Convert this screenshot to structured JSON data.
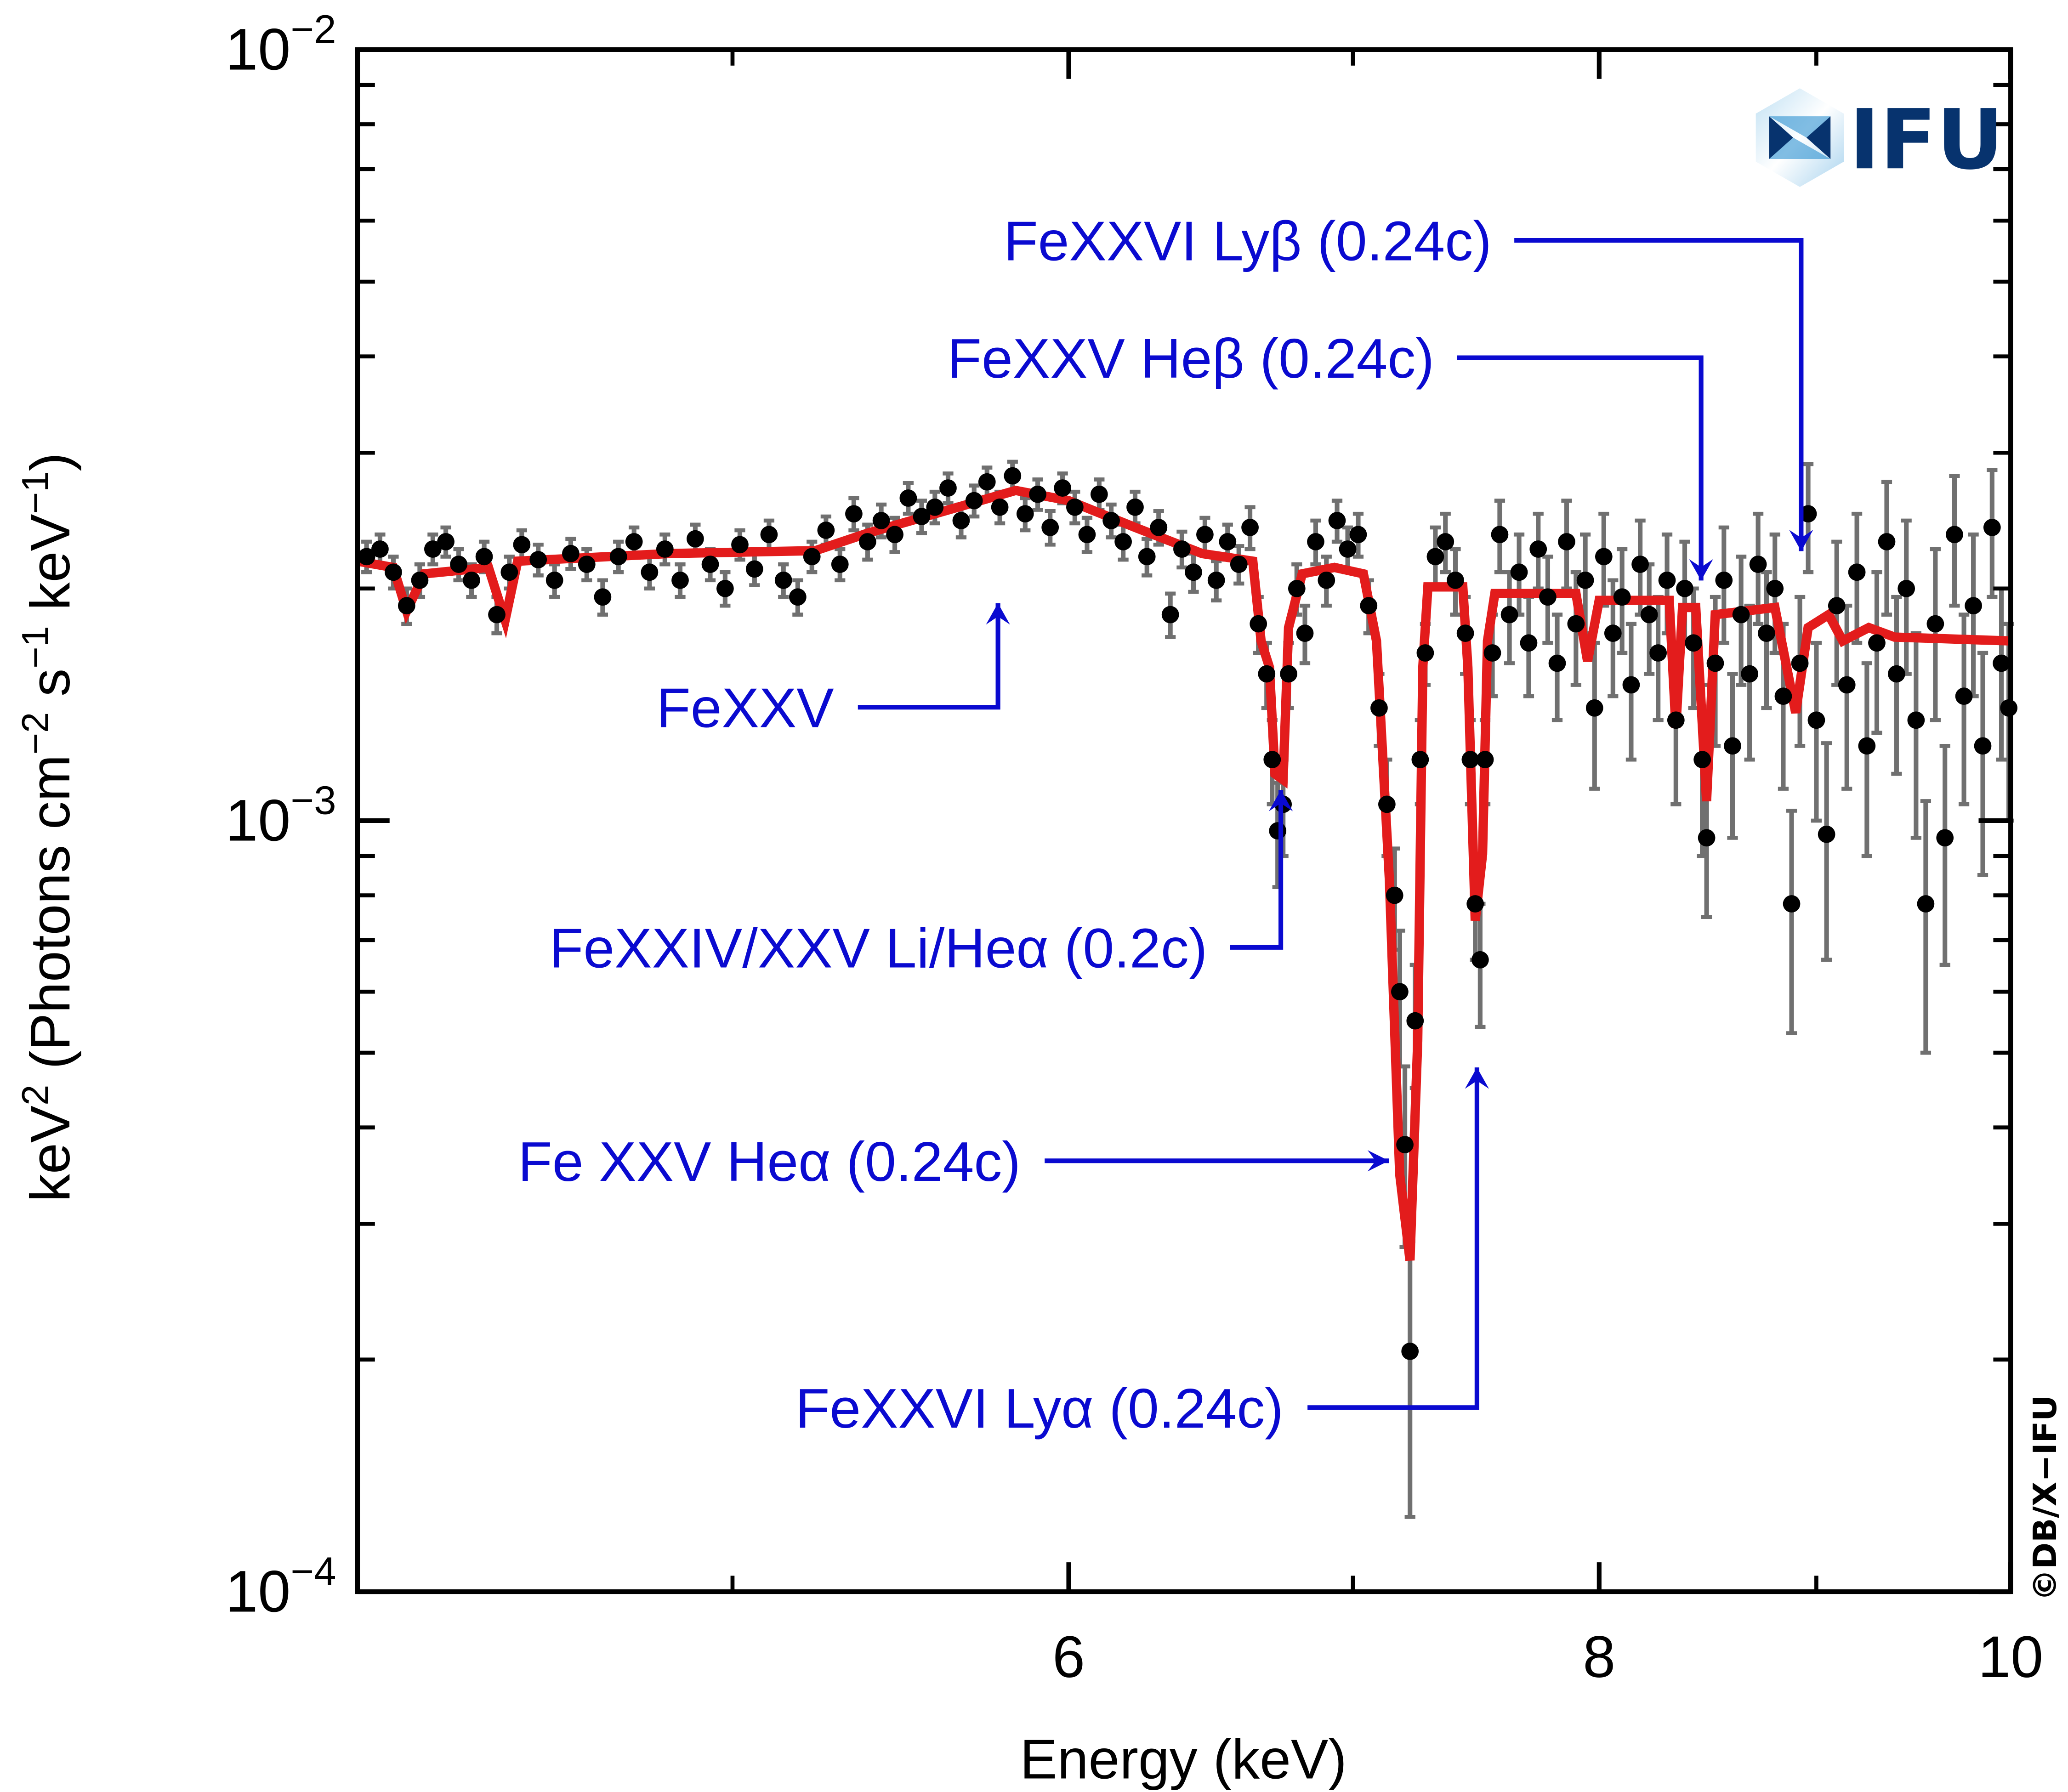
{
  "chart_data": {
    "type": "scatter",
    "xlabel": "Energy (keV)",
    "ylabel": {
      "pre": "keV",
      "sup1": "2",
      "mid1": " (Photons cm",
      "sup2": "−2",
      "mid2": " s",
      "sup3": "−1",
      "mid3": " keV",
      "sup4": "−1",
      "post": ")"
    },
    "x_scale": "log",
    "y_scale": "log",
    "xlim": [
      4.08,
      10
    ],
    "ylim": [
      0.0001,
      0.01
    ],
    "x_ticks": [
      {
        "value": 6,
        "label": "6"
      },
      {
        "value": 8,
        "label": "8"
      },
      {
        "value": 10,
        "label": "10"
      }
    ],
    "x_minor_ticks": [
      5,
      7,
      9
    ],
    "y_ticks": [
      {
        "value": 0.01,
        "base": "10",
        "exp": "−2"
      },
      {
        "value": 0.001,
        "base": "10",
        "exp": "−3"
      },
      {
        "value": 0.0001,
        "base": "10",
        "exp": "−4"
      }
    ],
    "grid": false,
    "colors": {
      "data": "#000000",
      "error_bars": "#707070",
      "model": "#e31c1c",
      "annotations": "#0a0ad0"
    },
    "series": [
      {
        "kind": "data-with-errors",
        "points": [
          [
            4.1,
            0.0022,
            0.0001
          ],
          [
            4.13,
            0.00225,
            0.0001
          ],
          [
            4.16,
            0.0021,
            0.0001
          ],
          [
            4.19,
            0.0019,
            0.0001
          ],
          [
            4.22,
            0.00205,
            0.0001
          ],
          [
            4.25,
            0.00225,
            0.0001
          ],
          [
            4.28,
            0.0023,
            0.0001
          ],
          [
            4.31,
            0.00215,
            0.0001
          ],
          [
            4.34,
            0.00205,
            0.0001
          ],
          [
            4.37,
            0.0022,
            0.0001
          ],
          [
            4.4,
            0.00185,
            0.0001
          ],
          [
            4.43,
            0.0021,
            0.0001
          ],
          [
            4.46,
            0.00228,
            0.0001
          ],
          [
            4.5,
            0.00218,
            0.0001
          ],
          [
            4.54,
            0.00205,
            0.0001
          ],
          [
            4.58,
            0.00222,
            0.0001
          ],
          [
            4.62,
            0.00215,
            0.0001
          ],
          [
            4.66,
            0.00195,
            0.0001
          ],
          [
            4.7,
            0.0022,
            0.0001
          ],
          [
            4.74,
            0.0023,
            0.0001
          ],
          [
            4.78,
            0.0021,
            0.0001
          ],
          [
            4.82,
            0.00225,
            0.0001
          ],
          [
            4.86,
            0.00205,
            0.0001
          ],
          [
            4.9,
            0.00232,
            0.0001
          ],
          [
            4.94,
            0.00215,
            0.0001
          ],
          [
            4.98,
            0.002,
            0.0001
          ],
          [
            5.02,
            0.00228,
            0.0001
          ],
          [
            5.06,
            0.00212,
            0.0001
          ],
          [
            5.1,
            0.00235,
            0.0001
          ],
          [
            5.14,
            0.00205,
            0.0001
          ],
          [
            5.18,
            0.00195,
            0.0001
          ],
          [
            5.22,
            0.0022,
            0.0001
          ],
          [
            5.26,
            0.00238,
            0.0001
          ],
          [
            5.3,
            0.00215,
            0.0001
          ],
          [
            5.34,
            0.0025,
            0.00012
          ],
          [
            5.38,
            0.0023,
            0.00012
          ],
          [
            5.42,
            0.00245,
            0.00012
          ],
          [
            5.46,
            0.00235,
            0.00012
          ],
          [
            5.5,
            0.00262,
            0.00012
          ],
          [
            5.54,
            0.00248,
            0.00012
          ],
          [
            5.58,
            0.00255,
            0.00012
          ],
          [
            5.62,
            0.0027,
            0.00012
          ],
          [
            5.66,
            0.00245,
            0.00012
          ],
          [
            5.7,
            0.0026,
            0.00012
          ],
          [
            5.74,
            0.00275,
            0.00012
          ],
          [
            5.78,
            0.00255,
            0.00012
          ],
          [
            5.82,
            0.0028,
            0.00012
          ],
          [
            5.86,
            0.0025,
            0.00012
          ],
          [
            5.9,
            0.00265,
            0.00012
          ],
          [
            5.94,
            0.0024,
            0.00012
          ],
          [
            5.98,
            0.0027,
            0.00012
          ],
          [
            6.02,
            0.00255,
            0.00012
          ],
          [
            6.06,
            0.00235,
            0.00012
          ],
          [
            6.1,
            0.00265,
            0.00012
          ],
          [
            6.14,
            0.00245,
            0.00012
          ],
          [
            6.18,
            0.0023,
            0.00012
          ],
          [
            6.22,
            0.00255,
            0.00012
          ],
          [
            6.26,
            0.0022,
            0.00012
          ],
          [
            6.3,
            0.0024,
            0.00012
          ],
          [
            6.34,
            0.00185,
            0.00012
          ],
          [
            6.38,
            0.00225,
            0.00012
          ],
          [
            6.42,
            0.0021,
            0.00012
          ],
          [
            6.46,
            0.00235,
            0.00012
          ],
          [
            6.5,
            0.00205,
            0.00012
          ],
          [
            6.54,
            0.0023,
            0.00012
          ],
          [
            6.58,
            0.00215,
            0.00012
          ],
          [
            6.62,
            0.0024,
            0.00015
          ],
          [
            6.65,
            0.0018,
            0.00015
          ],
          [
            6.68,
            0.00155,
            0.00015
          ],
          [
            6.7,
            0.0012,
            0.00015
          ],
          [
            6.72,
            0.00097,
            0.00015
          ],
          [
            6.74,
            0.00105,
            0.00015
          ],
          [
            6.76,
            0.00155,
            0.00015
          ],
          [
            6.79,
            0.002,
            0.00015
          ],
          [
            6.82,
            0.00175,
            0.00015
          ],
          [
            6.86,
            0.0023,
            0.00015
          ],
          [
            6.9,
            0.00205,
            0.00015
          ],
          [
            6.94,
            0.00245,
            0.00015
          ],
          [
            6.98,
            0.00225,
            0.00015
          ],
          [
            7.02,
            0.00235,
            0.00015
          ],
          [
            7.06,
            0.0019,
            0.00015
          ],
          [
            7.1,
            0.0014,
            0.00015
          ],
          [
            7.13,
            0.00105,
            0.00015
          ],
          [
            7.16,
            0.0008,
            0.00012
          ],
          [
            7.18,
            0.0006,
            0.00012
          ],
          [
            7.2,
            0.00038,
            0.0001
          ],
          [
            7.22,
            0.000205,
            8e-05
          ],
          [
            7.24,
            0.00055,
            0.0001
          ],
          [
            7.26,
            0.0012,
            0.00015
          ],
          [
            7.28,
            0.00165,
            0.00015
          ],
          [
            7.32,
            0.0022,
            0.0002
          ],
          [
            7.36,
            0.0023,
            0.0002
          ],
          [
            7.4,
            0.00205,
            0.0002
          ],
          [
            7.44,
            0.00175,
            0.0002
          ],
          [
            7.46,
            0.0012,
            0.00015
          ],
          [
            7.48,
            0.00078,
            0.00012
          ],
          [
            7.5,
            0.00066,
            0.00012
          ],
          [
            7.52,
            0.0012,
            0.00015
          ],
          [
            7.55,
            0.00165,
            0.0002
          ],
          [
            7.58,
            0.00235,
            0.00025
          ],
          [
            7.62,
            0.00185,
            0.00025
          ],
          [
            7.66,
            0.0021,
            0.00025
          ],
          [
            7.7,
            0.0017,
            0.00025
          ],
          [
            7.74,
            0.00225,
            0.00025
          ],
          [
            7.78,
            0.00195,
            0.00025
          ],
          [
            7.82,
            0.0016,
            0.00025
          ],
          [
            7.86,
            0.0023,
            0.0003
          ],
          [
            7.9,
            0.0018,
            0.0003
          ],
          [
            7.94,
            0.00205,
            0.0003
          ],
          [
            7.98,
            0.0014,
            0.0003
          ],
          [
            8.02,
            0.0022,
            0.0003
          ],
          [
            8.06,
            0.00175,
            0.0003
          ],
          [
            8.1,
            0.00195,
            0.0003
          ],
          [
            8.14,
            0.0015,
            0.0003
          ],
          [
            8.18,
            0.00215,
            0.0003
          ],
          [
            8.22,
            0.00185,
            0.0003
          ],
          [
            8.26,
            0.00165,
            0.0003
          ],
          [
            8.3,
            0.00205,
            0.0003
          ],
          [
            8.34,
            0.00135,
            0.0003
          ],
          [
            8.38,
            0.002,
            0.0003
          ],
          [
            8.42,
            0.0017,
            0.0003
          ],
          [
            8.46,
            0.0012,
            0.0003
          ],
          [
            8.48,
            0.00095,
            0.0002
          ],
          [
            8.52,
            0.0016,
            0.00035
          ],
          [
            8.56,
            0.00205,
            0.00035
          ],
          [
            8.6,
            0.00125,
            0.0003
          ],
          [
            8.64,
            0.00185,
            0.00035
          ],
          [
            8.68,
            0.00155,
            0.00035
          ],
          [
            8.72,
            0.00215,
            0.00035
          ],
          [
            8.76,
            0.00175,
            0.00035
          ],
          [
            8.8,
            0.002,
            0.00035
          ],
          [
            8.84,
            0.00145,
            0.00035
          ],
          [
            8.88,
            0.00078,
            0.00025
          ],
          [
            8.92,
            0.0016,
            0.00035
          ],
          [
            8.96,
            0.0025,
            0.0004
          ],
          [
            9.0,
            0.00135,
            0.00035
          ],
          [
            9.05,
            0.00096,
            0.0003
          ],
          [
            9.1,
            0.0019,
            0.0004
          ],
          [
            9.15,
            0.0015,
            0.0004
          ],
          [
            9.2,
            0.0021,
            0.0004
          ],
          [
            9.25,
            0.00125,
            0.00035
          ],
          [
            9.3,
            0.0017,
            0.0004
          ],
          [
            9.35,
            0.0023,
            0.00045
          ],
          [
            9.4,
            0.00155,
            0.0004
          ],
          [
            9.45,
            0.002,
            0.00045
          ],
          [
            9.5,
            0.00135,
            0.0004
          ],
          [
            9.55,
            0.00078,
            0.00028
          ],
          [
            9.6,
            0.0018,
            0.00045
          ],
          [
            9.65,
            0.00095,
            0.0003
          ],
          [
            9.7,
            0.00235,
            0.00045
          ],
          [
            9.75,
            0.00145,
            0.0004
          ],
          [
            9.8,
            0.0019,
            0.00045
          ],
          [
            9.85,
            0.00125,
            0.0004
          ],
          [
            9.9,
            0.0024,
            0.00045
          ],
          [
            9.95,
            0.0016,
            0.0004
          ],
          [
            9.99,
            0.0014,
            0.0004
          ]
        ]
      },
      {
        "kind": "model-line",
        "points": [
          [
            4.08,
            0.00217
          ],
          [
            4.16,
            0.00213
          ],
          [
            4.19,
            0.00187
          ],
          [
            4.23,
            0.00209
          ],
          [
            4.38,
            0.00213
          ],
          [
            4.42,
            0.00182
          ],
          [
            4.45,
            0.00217
          ],
          [
            4.83,
            0.00222
          ],
          [
            5.23,
            0.00224
          ],
          [
            5.38,
            0.00236
          ],
          [
            5.58,
            0.0025
          ],
          [
            5.83,
            0.00268
          ],
          [
            6.0,
            0.0026
          ],
          [
            6.22,
            0.0024
          ],
          [
            6.45,
            0.00222
          ],
          [
            6.63,
            0.00217
          ],
          [
            6.66,
            0.00171
          ],
          [
            6.69,
            0.00158
          ],
          [
            6.71,
            0.00115
          ],
          [
            6.74,
            0.00113
          ],
          [
            6.76,
            0.00178
          ],
          [
            6.81,
            0.00209
          ],
          [
            6.93,
            0.00213
          ],
          [
            7.04,
            0.00209
          ],
          [
            7.09,
            0.00171
          ],
          [
            7.14,
            0.000836
          ],
          [
            7.18,
            0.000348
          ],
          [
            7.22,
            0.000269
          ],
          [
            7.25,
            0.000518
          ],
          [
            7.27,
            0.00158
          ],
          [
            7.29,
            0.00201
          ],
          [
            7.43,
            0.00201
          ],
          [
            7.45,
            0.00158
          ],
          [
            7.48,
            0.000742
          ],
          [
            7.51,
            0.000905
          ],
          [
            7.53,
            0.00171
          ],
          [
            7.56,
            0.00197
          ],
          [
            7.9,
            0.00197
          ],
          [
            7.95,
            0.00161
          ],
          [
            8.0,
            0.00193
          ],
          [
            8.31,
            0.00193
          ],
          [
            8.34,
            0.00132
          ],
          [
            8.37,
            0.00189
          ],
          [
            8.43,
            0.00189
          ],
          [
            8.48,
            0.00106
          ],
          [
            8.52,
            0.00185
          ],
          [
            8.8,
            0.00189
          ],
          [
            8.9,
            0.00138
          ],
          [
            8.96,
            0.00178
          ],
          [
            9.06,
            0.00185
          ],
          [
            9.13,
            0.00171
          ],
          [
            9.26,
            0.00178
          ],
          [
            9.39,
            0.00173
          ],
          [
            10.0,
            0.00171
          ]
        ]
      }
    ],
    "annotations": [
      {
        "text": "FeXXVI Lyβ (0.24c)",
        "target_energy": 8.95
      },
      {
        "text": "FeXXV Heβ (0.24c)",
        "target_energy": 8.43
      },
      {
        "text": "FeXXV",
        "target_energy": 5.8
      },
      {
        "text": "FeXXIV/XXV Li/Heα (0.2c)",
        "target_energy": 6.74
      },
      {
        "text": "Fe XXV Heα (0.24c)",
        "target_energy": 7.17
      },
      {
        "text": "FeXXVI Lyα (0.24c)",
        "target_energy": 7.5
      }
    ]
  },
  "logo": {
    "text": "IFU",
    "icon": "x-ifu-hexagon-logo"
  },
  "credit": "©DB/X−IFU"
}
